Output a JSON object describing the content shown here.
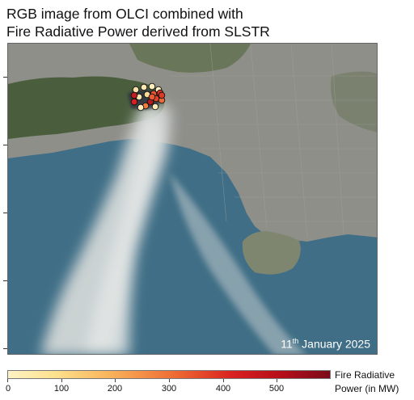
{
  "title": {
    "line1": "RGB image from OLCI combined with",
    "line2": "Fire Radiative Power derived from SLSTR"
  },
  "date": {
    "day": "11",
    "suffix": "th",
    "rest": " January 2025"
  },
  "colorbar": {
    "ticks": [
      "0",
      "100",
      "200",
      "300",
      "400",
      "500"
    ],
    "label_line1": "Fire Radiative",
    "label_line2": "Power (in MW)",
    "colors": [
      "#fff3c4",
      "#f9b25a",
      "#ee6a33",
      "#d82020",
      "#7a0b17"
    ]
  },
  "fire_points_frp_mw": [
    40,
    25,
    10,
    5,
    30,
    60,
    350,
    420,
    380,
    300,
    450,
    500,
    260,
    15,
    20,
    480,
    400,
    330
  ]
}
